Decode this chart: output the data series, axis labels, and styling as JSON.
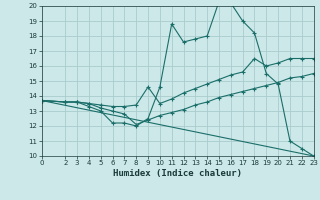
{
  "title": "",
  "xlabel": "Humidex (Indice chaleur)",
  "bg_color": "#cce8e8",
  "grid_color": "#aacccc",
  "line_color": "#1a6e6a",
  "xlim": [
    0,
    23
  ],
  "ylim": [
    10,
    20
  ],
  "yticks": [
    10,
    11,
    12,
    13,
    14,
    15,
    16,
    17,
    18,
    19,
    20
  ],
  "xticks": [
    0,
    2,
    3,
    4,
    5,
    6,
    7,
    8,
    9,
    10,
    11,
    12,
    13,
    14,
    15,
    16,
    17,
    18,
    19,
    20,
    21,
    22,
    23
  ],
  "line1_x": [
    0,
    2,
    3,
    4,
    5,
    6,
    7,
    8,
    9,
    10,
    11,
    12,
    13,
    14,
    15,
    16,
    17,
    18,
    19,
    20,
    21,
    22,
    23
  ],
  "line1_y": [
    13.7,
    13.6,
    13.6,
    13.3,
    13.0,
    12.2,
    12.2,
    12.0,
    12.5,
    14.6,
    18.8,
    17.6,
    17.8,
    18.0,
    20.3,
    20.2,
    19.0,
    18.2,
    15.5,
    14.8,
    11.0,
    10.5,
    10.0
  ],
  "line2_x": [
    0,
    2,
    3,
    4,
    5,
    6,
    7,
    8,
    9,
    10,
    11,
    12,
    13,
    14,
    15,
    16,
    17,
    18,
    19,
    20,
    21,
    22,
    23
  ],
  "line2_y": [
    13.7,
    13.6,
    13.6,
    13.5,
    13.4,
    13.3,
    13.3,
    13.4,
    14.6,
    13.5,
    13.8,
    14.2,
    14.5,
    14.8,
    15.1,
    15.4,
    15.6,
    16.5,
    16.0,
    16.2,
    16.5,
    16.5,
    16.5
  ],
  "line3_x": [
    0,
    2,
    3,
    4,
    5,
    6,
    7,
    8,
    9,
    10,
    11,
    12,
    13,
    14,
    15,
    16,
    17,
    18,
    19,
    20,
    21,
    22,
    23
  ],
  "line3_y": [
    13.7,
    13.6,
    13.6,
    13.5,
    13.2,
    13.0,
    12.8,
    12.1,
    12.4,
    12.7,
    12.9,
    13.1,
    13.4,
    13.6,
    13.9,
    14.1,
    14.3,
    14.5,
    14.7,
    14.9,
    15.2,
    15.3,
    15.5
  ],
  "line4_x": [
    0,
    23
  ],
  "line4_y": [
    13.7,
    10.0
  ]
}
